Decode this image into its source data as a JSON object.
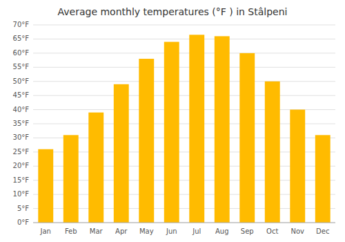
{
  "chart_data": {
    "type": "bar",
    "title": "Average monthly temperatures (°F ) in Stâlpeni",
    "categories": [
      "Jan",
      "Feb",
      "Mar",
      "Apr",
      "May",
      "Jun",
      "Jul",
      "Aug",
      "Sep",
      "Oct",
      "Nov",
      "Dec"
    ],
    "values": [
      26,
      31,
      39,
      49,
      58,
      64,
      66.5,
      66,
      60,
      50,
      40,
      31
    ],
    "color": "#FFBB00",
    "ylim": [
      0,
      70
    ],
    "yticks": [
      {
        "value": 0,
        "label": "0°F"
      },
      {
        "value": 5,
        "label": "5°F"
      },
      {
        "value": 10,
        "label": "10°F"
      },
      {
        "value": 15,
        "label": "15°F"
      },
      {
        "value": 20,
        "label": "20°F"
      },
      {
        "value": 25,
        "label": "25°F"
      },
      {
        "value": 30,
        "label": "30°F"
      },
      {
        "value": 35,
        "label": "35°F"
      },
      {
        "value": 40,
        "label": "40°F"
      },
      {
        "value": 45,
        "label": "45°F"
      },
      {
        "value": 50,
        "label": "50°F"
      },
      {
        "value": 55,
        "label": "55°F"
      },
      {
        "value": 60,
        "label": "60°F"
      },
      {
        "value": 65,
        "label": "65°F"
      },
      {
        "value": 70,
        "label": "70°F"
      }
    ],
    "grid": true
  }
}
